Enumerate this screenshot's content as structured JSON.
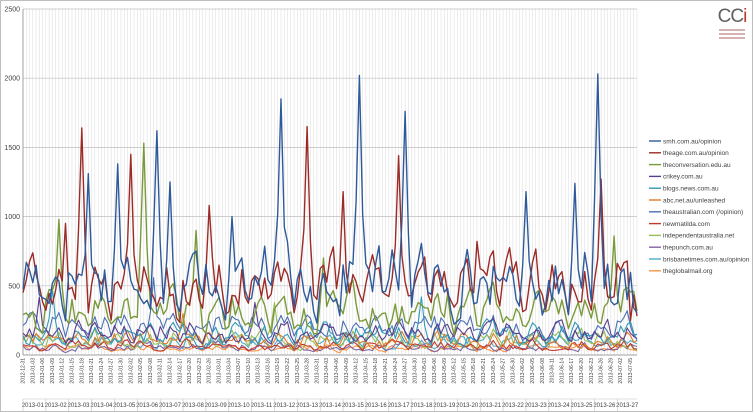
{
  "chart_data": {
    "type": "line",
    "y_ticks": [
      0,
      500,
      1000,
      1500,
      2000,
      2500
    ],
    "ylim": [
      0,
      2500
    ],
    "grid": true,
    "legend_position": "right",
    "x_start_date": "2012-12-31",
    "x_end_date": "2013-07-07",
    "x_daily_labels_every_days": 3,
    "x_week_labels": [
      "2013-01",
      "2013-02",
      "2013-03",
      "2013-04",
      "2013-05",
      "2013-06",
      "2013-07",
      "2013-08",
      "2013-09",
      "2013-10",
      "2013-11",
      "2013-12",
      "2013-13",
      "2013-14",
      "2013-15",
      "2013-16",
      "2013-17",
      "2013-18",
      "2013-19",
      "2013-20",
      "2013-21",
      "2013-22",
      "2013-23",
      "2013-24",
      "2013-25",
      "2013-26",
      "2013-27"
    ],
    "series": [
      {
        "name": "smh.com.au/opinion",
        "color": "#2e5a9c",
        "base": 560,
        "amp": 360,
        "peaks": [
          [
            "2013-01-20",
            1310
          ],
          [
            "2013-01-29",
            1380
          ],
          [
            "2013-02-10",
            1620
          ],
          [
            "2013-02-14",
            1250
          ],
          [
            "2013-03-05",
            1000
          ],
          [
            "2013-03-20",
            1850
          ],
          [
            "2013-04-13",
            2020
          ],
          [
            "2013-04-27",
            1760
          ],
          [
            "2013-06-03",
            1180
          ],
          [
            "2013-06-18",
            1240
          ],
          [
            "2013-06-25",
            2030
          ],
          [
            "2013-07-04",
            400
          ]
        ]
      },
      {
        "name": "theage.com.au/opinion",
        "color": "#9c2b27",
        "base": 510,
        "amp": 320,
        "peaks": [
          [
            "2013-01-13",
            950
          ],
          [
            "2013-01-18",
            1640
          ],
          [
            "2013-02-02",
            1450
          ],
          [
            "2013-02-26",
            1080
          ],
          [
            "2013-03-28",
            1650
          ],
          [
            "2013-04-08",
            1180
          ],
          [
            "2013-04-25",
            1440
          ],
          [
            "2013-05-19",
            820
          ],
          [
            "2013-06-26",
            1270
          ],
          [
            "2013-07-05",
            250
          ]
        ]
      },
      {
        "name": "theconversation.edu.au",
        "color": "#7a9a3a",
        "base": 330,
        "amp": 260,
        "peaks": [
          [
            "2013-01-11",
            980
          ],
          [
            "2013-02-06",
            1530
          ],
          [
            "2013-02-22",
            900
          ],
          [
            "2013-04-02",
            700
          ],
          [
            "2013-06-30",
            860
          ],
          [
            "2013-07-06",
            460
          ]
        ]
      },
      {
        "name": "crikey.com.au",
        "color": "#5a3d8a",
        "base": 170,
        "amp": 120,
        "peaks": [
          [
            "2013-01-05",
            420
          ],
          [
            "2013-03-12",
            380
          ]
        ]
      },
      {
        "name": "blogs.news.com.au",
        "color": "#2f99b8",
        "base": 150,
        "amp": 130,
        "peaks": [
          [
            "2013-01-09",
            480
          ],
          [
            "2013-05-02",
            420
          ]
        ]
      },
      {
        "name": "abc.net.au/unleashed",
        "color": "#e07a26",
        "base": 110,
        "amp": 90,
        "peaks": [
          [
            "2013-02-18",
            300
          ]
        ]
      },
      {
        "name": "theaustralian.com (/opinion)",
        "color": "#4a6fb3",
        "base": 210,
        "amp": 140,
        "peaks": [
          [
            "2013-02-09",
            560
          ]
        ]
      },
      {
        "name": "newmatilda.com",
        "color": "#c0392b",
        "base": 70,
        "amp": 60,
        "peaks": []
      },
      {
        "name": "independentaustralia.net",
        "color": "#9bbb59",
        "base": 120,
        "amp": 110,
        "peaks": [
          [
            "2013-03-18",
            380
          ]
        ]
      },
      {
        "name": "thepunch.com.au",
        "color": "#8064a2",
        "base": 60,
        "amp": 50,
        "peaks": []
      },
      {
        "name": "brisbanetimes.com.au/opinion",
        "color": "#4bacc6",
        "base": 100,
        "amp": 80,
        "peaks": []
      },
      {
        "name": "theglobalmail.org",
        "color": "#f79646",
        "base": 50,
        "amp": 40,
        "peaks": []
      }
    ]
  },
  "logo": {
    "text": "CC",
    "accent": "i"
  }
}
